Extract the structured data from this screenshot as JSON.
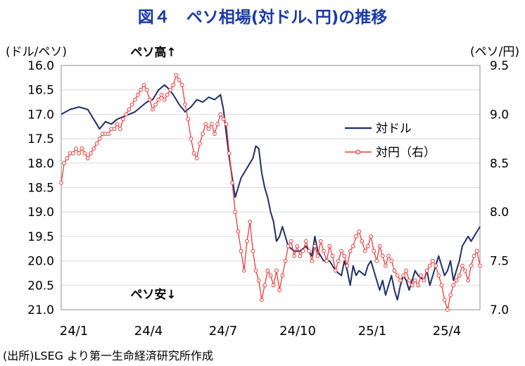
{
  "chart_data": {
    "type": "line",
    "title": "図４　ペソ相場(対ドル､円)の推移",
    "y_left_unit": "(ドル/ペソ)",
    "y_right_unit": "(ペソ/円)",
    "annotation_top": "ペソ高↑",
    "annotation_bottom": "ペソ安↓",
    "source": "(出所)LSEG より第一生命経済研究所作成",
    "y_left": {
      "min": 16.0,
      "max": 21.0,
      "inverted": true,
      "ticks": [
        "16.0",
        "16.5",
        "17.0",
        "17.5",
        "18.0",
        "18.5",
        "19.0",
        "19.5",
        "20.0",
        "20.5",
        "21.0"
      ]
    },
    "y_right": {
      "min": 7.0,
      "max": 9.5,
      "ticks": [
        "7.0",
        "7.5",
        "8.0",
        "8.5",
        "9.0",
        "9.5"
      ]
    },
    "x_labels": [
      "24/1",
      "24/4",
      "24/7",
      "24/10",
      "25/1",
      "25/4"
    ],
    "series": [
      {
        "name": "対ドル",
        "axis": "left",
        "color": "#1f2f6b",
        "points": [
          [
            0,
            17.0
          ],
          [
            3,
            16.9
          ],
          [
            6,
            16.85
          ],
          [
            9,
            16.9
          ],
          [
            11,
            17.1
          ],
          [
            13,
            17.3
          ],
          [
            15,
            17.15
          ],
          [
            17,
            17.2
          ],
          [
            19,
            17.1
          ],
          [
            21,
            17.05
          ],
          [
            23,
            17.0
          ],
          [
            25,
            16.95
          ],
          [
            27,
            16.85
          ],
          [
            29,
            16.75
          ],
          [
            31,
            16.7
          ],
          [
            33,
            16.5
          ],
          [
            35,
            16.4
          ],
          [
            36,
            16.45
          ],
          [
            38,
            16.6
          ],
          [
            40,
            16.8
          ],
          [
            42,
            16.95
          ],
          [
            44,
            16.85
          ],
          [
            46,
            16.7
          ],
          [
            48,
            16.75
          ],
          [
            50,
            16.65
          ],
          [
            52,
            16.7
          ],
          [
            54,
            16.6
          ],
          [
            55,
            16.9
          ],
          [
            56,
            17.4
          ],
          [
            57,
            17.9
          ],
          [
            58,
            18.3
          ],
          [
            59,
            18.7
          ],
          [
            60,
            18.5
          ],
          [
            61,
            18.3
          ],
          [
            62,
            18.2
          ],
          [
            63,
            18.1
          ],
          [
            64,
            18.0
          ],
          [
            65,
            17.9
          ],
          [
            66,
            17.65
          ],
          [
            67,
            17.7
          ],
          [
            68,
            18.2
          ],
          [
            69,
            18.5
          ],
          [
            70,
            18.7
          ],
          [
            71,
            19.0
          ],
          [
            72,
            19.2
          ],
          [
            73,
            19.6
          ],
          [
            74,
            19.5
          ],
          [
            75,
            19.3
          ],
          [
            77,
            19.7
          ],
          [
            79,
            19.8
          ],
          [
            81,
            19.8
          ],
          [
            83,
            19.7
          ],
          [
            85,
            19.9
          ],
          [
            86,
            19.5
          ],
          [
            87,
            19.8
          ],
          [
            89,
            20.0
          ],
          [
            91,
            20.0
          ],
          [
            93,
            20.2
          ],
          [
            95,
            20.3
          ],
          [
            96,
            20.0
          ],
          [
            97,
            20.2
          ],
          [
            98,
            20.5
          ],
          [
            99,
            20.1
          ],
          [
            100,
            20.3
          ],
          [
            101,
            20.2
          ],
          [
            103,
            20.3
          ],
          [
            104,
            20.1
          ],
          [
            105,
            20.0
          ],
          [
            107,
            20.4
          ],
          [
            108,
            20.6
          ],
          [
            109,
            20.4
          ],
          [
            110,
            20.7
          ],
          [
            111,
            20.5
          ],
          [
            112,
            20.3
          ],
          [
            113,
            20.6
          ],
          [
            114,
            20.8
          ],
          [
            115,
            20.5
          ],
          [
            116,
            20.3
          ],
          [
            117,
            20.4
          ],
          [
            118,
            20.6
          ],
          [
            119,
            20.4
          ],
          [
            120,
            20.2
          ],
          [
            121,
            20.3
          ],
          [
            123,
            20.4
          ],
          [
            124,
            20.2
          ],
          [
            125,
            20.5
          ],
          [
            126,
            20.3
          ],
          [
            127,
            20.1
          ],
          [
            128,
            19.9
          ],
          [
            129,
            20.1
          ],
          [
            130,
            20.3
          ],
          [
            131,
            20.2
          ],
          [
            132,
            20.0
          ],
          [
            133,
            20.4
          ],
          [
            134,
            20.2
          ],
          [
            135,
            20.0
          ],
          [
            136,
            19.7
          ],
          [
            137,
            19.6
          ],
          [
            138,
            19.5
          ],
          [
            139,
            19.6
          ],
          [
            140,
            19.5
          ],
          [
            141,
            19.4
          ],
          [
            142,
            19.3
          ]
        ]
      },
      {
        "name": "対円（右）",
        "axis": "right",
        "color": "#ef3b3b",
        "points": [
          [
            0,
            8.3
          ],
          [
            1,
            8.5
          ],
          [
            2,
            8.55
          ],
          [
            3,
            8.6
          ],
          [
            4,
            8.6
          ],
          [
            5,
            8.65
          ],
          [
            6,
            8.6
          ],
          [
            7,
            8.65
          ],
          [
            8,
            8.6
          ],
          [
            9,
            8.55
          ],
          [
            10,
            8.6
          ],
          [
            11,
            8.65
          ],
          [
            12,
            8.7
          ],
          [
            13,
            8.75
          ],
          [
            14,
            8.8
          ],
          [
            15,
            8.8
          ],
          [
            16,
            8.8
          ],
          [
            17,
            8.85
          ],
          [
            18,
            8.85
          ],
          [
            19,
            8.9
          ],
          [
            20,
            8.85
          ],
          [
            21,
            8.95
          ],
          [
            22,
            9.0
          ],
          [
            23,
            9.05
          ],
          [
            24,
            9.1
          ],
          [
            25,
            9.15
          ],
          [
            26,
            9.2
          ],
          [
            27,
            9.25
          ],
          [
            28,
            9.3
          ],
          [
            29,
            9.25
          ],
          [
            30,
            9.15
          ],
          [
            31,
            9.05
          ],
          [
            32,
            9.1
          ],
          [
            33,
            9.15
          ],
          [
            34,
            9.2
          ],
          [
            35,
            9.15
          ],
          [
            36,
            9.2
          ],
          [
            37,
            9.25
          ],
          [
            38,
            9.3
          ],
          [
            39,
            9.4
          ],
          [
            40,
            9.35
          ],
          [
            41,
            9.3
          ],
          [
            42,
            9.1
          ],
          [
            43,
            8.95
          ],
          [
            44,
            8.75
          ],
          [
            45,
            8.6
          ],
          [
            46,
            8.55
          ],
          [
            47,
            8.7
          ],
          [
            48,
            8.8
          ],
          [
            49,
            8.9
          ],
          [
            50,
            8.85
          ],
          [
            51,
            8.9
          ],
          [
            52,
            8.8
          ],
          [
            53,
            8.9
          ],
          [
            54,
            9.0
          ],
          [
            55,
            8.95
          ],
          [
            56,
            8.9
          ],
          [
            57,
            8.6
          ],
          [
            58,
            8.3
          ],
          [
            59,
            8.0
          ],
          [
            60,
            7.8
          ],
          [
            61,
            7.6
          ],
          [
            62,
            7.4
          ],
          [
            63,
            7.7
          ],
          [
            64,
            7.9
          ],
          [
            65,
            7.6
          ],
          [
            66,
            7.4
          ],
          [
            67,
            7.3
          ],
          [
            68,
            7.1
          ],
          [
            69,
            7.25
          ],
          [
            70,
            7.4
          ],
          [
            71,
            7.35
          ],
          [
            72,
            7.25
          ],
          [
            73,
            7.4
          ],
          [
            74,
            7.2
          ],
          [
            75,
            7.35
          ],
          [
            76,
            7.5
          ],
          [
            77,
            7.65
          ],
          [
            78,
            7.7
          ],
          [
            79,
            7.55
          ],
          [
            80,
            7.65
          ],
          [
            81,
            7.55
          ],
          [
            82,
            7.6
          ],
          [
            83,
            7.7
          ],
          [
            84,
            7.6
          ],
          [
            85,
            7.5
          ],
          [
            86,
            7.65
          ],
          [
            87,
            7.55
          ],
          [
            88,
            7.7
          ],
          [
            89,
            7.6
          ],
          [
            90,
            7.5
          ],
          [
            91,
            7.65
          ],
          [
            92,
            7.55
          ],
          [
            93,
            7.4
          ],
          [
            94,
            7.5
          ],
          [
            95,
            7.6
          ],
          [
            96,
            7.55
          ],
          [
            97,
            7.45
          ],
          [
            98,
            7.6
          ],
          [
            99,
            7.65
          ],
          [
            100,
            7.75
          ],
          [
            101,
            7.8
          ],
          [
            102,
            7.7
          ],
          [
            103,
            7.6
          ],
          [
            104,
            7.65
          ],
          [
            105,
            7.75
          ],
          [
            106,
            7.6
          ],
          [
            107,
            7.5
          ],
          [
            108,
            7.65
          ],
          [
            109,
            7.55
          ],
          [
            110,
            7.45
          ],
          [
            111,
            7.55
          ],
          [
            112,
            7.5
          ],
          [
            113,
            7.4
          ],
          [
            114,
            7.35
          ],
          [
            115,
            7.3
          ],
          [
            116,
            7.35
          ],
          [
            117,
            7.4
          ],
          [
            118,
            7.3
          ],
          [
            119,
            7.25
          ],
          [
            120,
            7.3
          ],
          [
            121,
            7.25
          ],
          [
            122,
            7.35
          ],
          [
            123,
            7.3
          ],
          [
            124,
            7.4
          ],
          [
            125,
            7.45
          ],
          [
            126,
            7.5
          ],
          [
            127,
            7.45
          ],
          [
            128,
            7.35
          ],
          [
            129,
            7.25
          ],
          [
            130,
            7.1
          ],
          [
            131,
            7.0
          ],
          [
            132,
            7.15
          ],
          [
            133,
            7.25
          ],
          [
            134,
            7.3
          ],
          [
            135,
            7.35
          ],
          [
            136,
            7.45
          ],
          [
            137,
            7.4
          ],
          [
            138,
            7.3
          ],
          [
            139,
            7.45
          ],
          [
            140,
            7.55
          ],
          [
            141,
            7.6
          ],
          [
            142,
            7.45
          ]
        ]
      }
    ]
  }
}
